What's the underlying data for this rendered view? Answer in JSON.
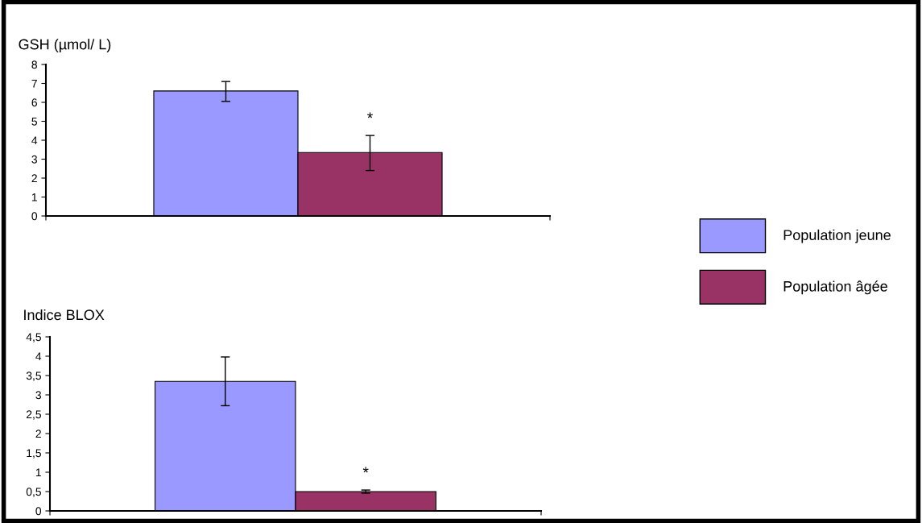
{
  "chart_data": [
    {
      "type": "bar",
      "ylabel": "GSH (µmol/ L)",
      "categories": [
        null
      ],
      "tick_labels": "y",
      "legend": "right",
      "grid": false,
      "series": [
        {
          "name": "Population jeune",
          "color": "#9999ff",
          "values": [
            6.6
          ],
          "errors": [
            [
              6.05,
              7.1
            ]
          ]
        },
        {
          "name": "Population âgée",
          "color": "#993366",
          "values": [
            3.35
          ],
          "errors": [
            [
              2.4,
              4.25
            ]
          ]
        }
      ],
      "ylim": [
        0,
        8
      ],
      "yticks": [
        0,
        1,
        2,
        3,
        4,
        5,
        6,
        7,
        8
      ],
      "annotations": [
        "*"
      ]
    },
    {
      "type": "bar",
      "ylabel": "Indice BLOX",
      "categories": [
        null
      ],
      "tick_labels": "y",
      "legend": false,
      "grid": false,
      "series": [
        {
          "color": "#9999ff",
          "values": [
            3.35
          ],
          "errors": [
            [
              2.72,
              3.98
            ]
          ]
        },
        {
          "color": "#993366",
          "values": [
            0.5
          ],
          "errors": [
            [
              0.46,
              0.54
            ]
          ]
        }
      ],
      "ylim": [
        0,
        4.5
      ],
      "yticks": [
        0,
        {
          "value": 0.5,
          "label": "0,5"
        },
        1,
        {
          "value": 1.5,
          "label": "1,5"
        },
        2,
        {
          "value": 2.5,
          "label": "2,5"
        },
        3,
        {
          "value": 3.5,
          "label": "3,5"
        },
        4,
        {
          "value": 4.5,
          "label": "4,5"
        }
      ],
      "annotations": [
        "*"
      ]
    }
  ]
}
